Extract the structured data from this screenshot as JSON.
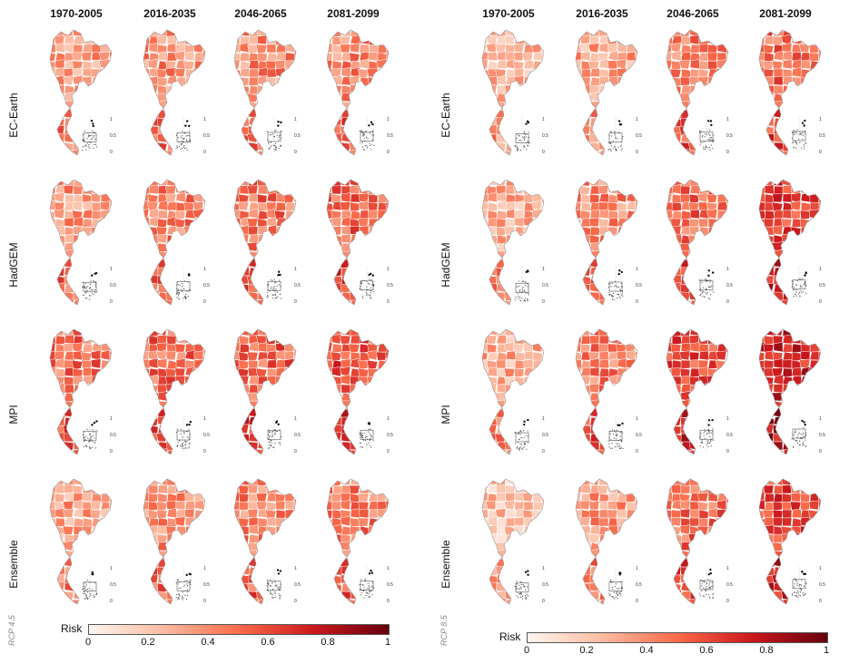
{
  "periods": [
    "1970-2005",
    "2016-2035",
    "2046-2065",
    "2081-2099"
  ],
  "models": [
    "EC-Earth",
    "HadGEM",
    "MPI",
    "Ensemble"
  ],
  "panels": [
    {
      "scenario": "RCP 4.5",
      "legend_title": "Risk",
      "ticks": [
        "0",
        "0.2",
        "0.4",
        "0.6",
        "0.8",
        "1"
      ]
    },
    {
      "scenario": "RCP 8.5",
      "legend_title": "Risk",
      "ticks": [
        "0",
        "0.2",
        "0.4",
        "0.6",
        "0.8",
        "1"
      ]
    }
  ],
  "inset_axis_labels": [
    "1",
    "0.5",
    "0"
  ],
  "colors": {
    "low": "#fff5f0",
    "mid": "#fb6a4a",
    "high": "#67000d"
  },
  "intensity_levels": {
    "RCP 4.5": [
      [
        0.35,
        0.38,
        0.4,
        0.42
      ],
      [
        0.38,
        0.45,
        0.48,
        0.52
      ],
      [
        0.48,
        0.5,
        0.52,
        0.58
      ],
      [
        0.32,
        0.38,
        0.42,
        0.45
      ]
    ],
    "RCP 8.5": [
      [
        0.25,
        0.32,
        0.45,
        0.5
      ],
      [
        0.28,
        0.4,
        0.52,
        0.62
      ],
      [
        0.3,
        0.45,
        0.58,
        0.7
      ],
      [
        0.22,
        0.35,
        0.5,
        0.62
      ]
    ]
  }
}
